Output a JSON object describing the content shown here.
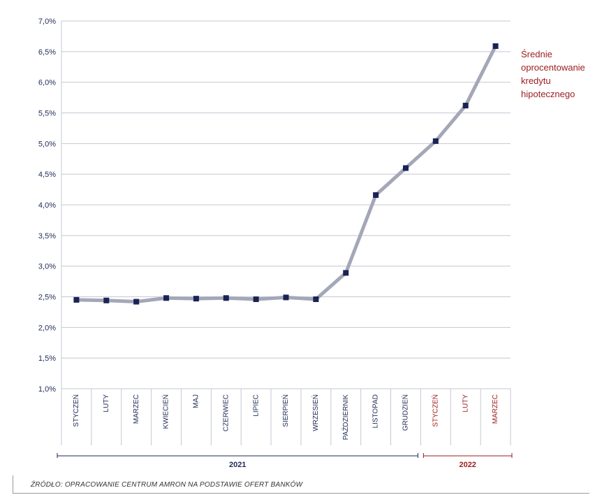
{
  "chart_data": {
    "type": "line",
    "categories": [
      "STYCZEŃ",
      "LUTY",
      "MARZEC",
      "KWIECIEŃ",
      "MAJ",
      "CZERWIEC",
      "LIPIEC",
      "SIERPIEŃ",
      "WRZESIEŃ",
      "PAŹDZIERNIK",
      "LISTOPAD",
      "GRUDZIEŃ",
      "STYCZEŃ",
      "LUTY",
      "MARZEC"
    ],
    "series": [
      {
        "name": "Średnie oprocentowanie kredytu hipotecznego",
        "values": [
          2.45,
          2.44,
          2.42,
          2.48,
          2.47,
          2.48,
          2.46,
          2.49,
          2.46,
          2.89,
          4.16,
          4.6,
          5.04,
          5.62,
          6.59
        ]
      }
    ],
    "legend_lines": [
      "Średnie",
      "oprocentowanie",
      "kredytu",
      "hipotecznego"
    ],
    "ylim": [
      1.0,
      7.0
    ],
    "yticks": [
      "1,0%",
      "1,5%",
      "2,0%",
      "2,5%",
      "3,0%",
      "3,5%",
      "4,0%",
      "4,5%",
      "5,0%",
      "5,5%",
      "6,0%",
      "6,5%",
      "7,0%"
    ],
    "groups": [
      {
        "label": "2021",
        "start": 0,
        "end": 11
      },
      {
        "label": "2022",
        "start": 12,
        "end": 14
      }
    ],
    "grid": true,
    "legend_position": "right"
  },
  "colors": {
    "line": "#a3a7b8",
    "marker": "#1a2353",
    "axis_text": "#1e2a55",
    "accent": "#9b1c1c",
    "grid": "#c5c8d3"
  },
  "source": "ŹRÓDŁO: OPRACOWANIE CENTRUM AMRON NA PODSTAWIE OFERT BANKÓW"
}
